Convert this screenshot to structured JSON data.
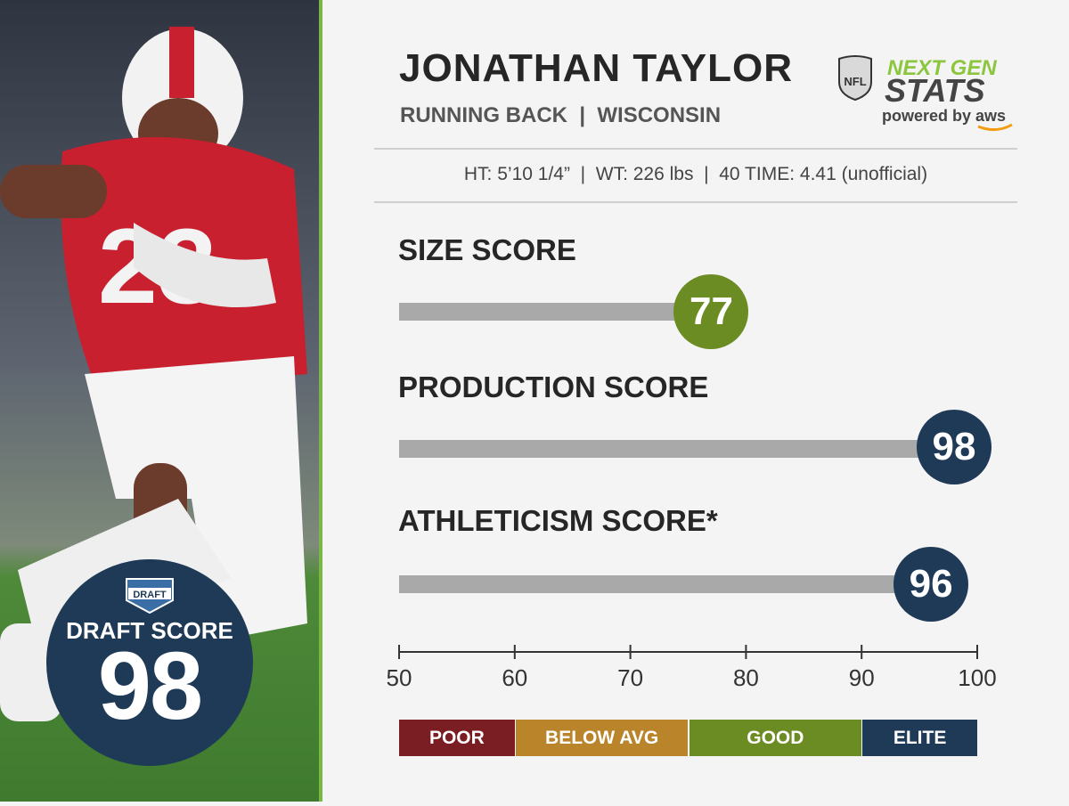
{
  "player": {
    "name": "JONATHAN TAYLOR",
    "subtitle": "RUNNING BACK  |  WISCONSIN",
    "measurables": "HT: 5’10 1/4”  |  WT: 226 lbs  |  40 TIME: 4.41 (unofficial)"
  },
  "logo": {
    "nfl": "NFL",
    "ngs_line1": "NEXT GEN",
    "ngs_line2": "STATS",
    "powered": "powered by aws",
    "draft_logo": "DRAFT"
  },
  "draft_score": {
    "label": "DRAFT SCORE",
    "value": "98"
  },
  "colors": {
    "poor": "#7b1e24",
    "below_avg": "#b9842a",
    "good": "#6b8c23",
    "elite": "#1e3a57",
    "track": "#a9a9a9"
  },
  "chart_data": {
    "type": "bar",
    "orientation": "horizontal",
    "categories": [
      "SIZE SCORE",
      "PRODUCTION SCORE",
      "ATHLETICISM SCORE*"
    ],
    "values": [
      77,
      98,
      96
    ],
    "tiers_by_value": [
      "good",
      "elite",
      "elite"
    ],
    "xlim": [
      50,
      100
    ],
    "ticks": [
      50,
      60,
      70,
      80,
      90,
      100
    ],
    "legend": [
      {
        "label": "POOR",
        "range": [
          50,
          60
        ],
        "color_key": "poor"
      },
      {
        "label": "BELOW AVG",
        "range": [
          60,
          75
        ],
        "color_key": "below_avg"
      },
      {
        "label": "GOOD",
        "range": [
          75,
          90
        ],
        "color_key": "good"
      },
      {
        "label": "ELITE",
        "range": [
          90,
          100
        ],
        "color_key": "elite"
      }
    ]
  }
}
